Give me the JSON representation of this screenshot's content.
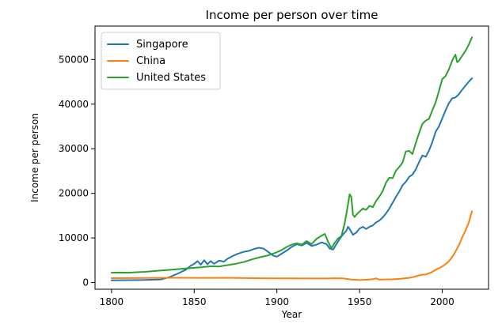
{
  "chart_data": {
    "type": "line",
    "title": "Income per person over time",
    "xlabel": "Year",
    "ylabel": "Income per person",
    "xlim": [
      1790,
      2028
    ],
    "ylim": [
      -1500,
      57500
    ],
    "xticks": [
      1800,
      1850,
      1900,
      1950,
      2000
    ],
    "yticks": [
      0,
      10000,
      20000,
      30000,
      40000,
      50000
    ],
    "grid": false,
    "legend_position": "top-left",
    "series": [
      {
        "name": "Singapore",
        "color": "#1f77b4",
        "points": [
          [
            1800,
            500
          ],
          [
            1810,
            540
          ],
          [
            1820,
            580
          ],
          [
            1830,
            700
          ],
          [
            1835,
            1200
          ],
          [
            1840,
            2000
          ],
          [
            1845,
            2900
          ],
          [
            1848,
            3800
          ],
          [
            1850,
            4200
          ],
          [
            1852,
            4800
          ],
          [
            1854,
            4000
          ],
          [
            1856,
            5000
          ],
          [
            1858,
            4100
          ],
          [
            1860,
            4800
          ],
          [
            1862,
            4200
          ],
          [
            1865,
            4900
          ],
          [
            1868,
            4700
          ],
          [
            1870,
            5300
          ],
          [
            1873,
            5900
          ],
          [
            1876,
            6400
          ],
          [
            1880,
            6900
          ],
          [
            1883,
            7100
          ],
          [
            1886,
            7500
          ],
          [
            1889,
            7800
          ],
          [
            1892,
            7600
          ],
          [
            1895,
            6800
          ],
          [
            1898,
            6000
          ],
          [
            1900,
            5800
          ],
          [
            1903,
            6500
          ],
          [
            1906,
            7200
          ],
          [
            1909,
            8000
          ],
          [
            1912,
            8600
          ],
          [
            1915,
            8300
          ],
          [
            1918,
            8900
          ],
          [
            1921,
            8200
          ],
          [
            1924,
            8500
          ],
          [
            1927,
            9000
          ],
          [
            1930,
            8600
          ],
          [
            1932,
            7600
          ],
          [
            1934,
            7400
          ],
          [
            1936,
            8600
          ],
          [
            1938,
            9800
          ],
          [
            1940,
            10800
          ],
          [
            1942,
            11600
          ],
          [
            1943,
            12500
          ],
          [
            1944,
            12000
          ],
          [
            1946,
            10700
          ],
          [
            1948,
            11200
          ],
          [
            1950,
            12100
          ],
          [
            1952,
            12500
          ],
          [
            1954,
            12000
          ],
          [
            1956,
            12500
          ],
          [
            1958,
            12800
          ],
          [
            1960,
            13500
          ],
          [
            1962,
            13900
          ],
          [
            1964,
            14600
          ],
          [
            1966,
            15500
          ],
          [
            1968,
            16600
          ],
          [
            1970,
            17900
          ],
          [
            1972,
            19200
          ],
          [
            1974,
            20400
          ],
          [
            1976,
            21800
          ],
          [
            1978,
            22600
          ],
          [
            1980,
            23700
          ],
          [
            1982,
            24200
          ],
          [
            1984,
            25400
          ],
          [
            1986,
            27000
          ],
          [
            1988,
            28500
          ],
          [
            1990,
            28200
          ],
          [
            1992,
            29600
          ],
          [
            1994,
            31500
          ],
          [
            1996,
            33800
          ],
          [
            1998,
            35000
          ],
          [
            2000,
            36800
          ],
          [
            2002,
            38600
          ],
          [
            2004,
            40200
          ],
          [
            2006,
            41300
          ],
          [
            2008,
            41500
          ],
          [
            2010,
            42200
          ],
          [
            2012,
            43200
          ],
          [
            2014,
            44100
          ],
          [
            2016,
            45000
          ],
          [
            2018,
            45800
          ]
        ]
      },
      {
        "name": "China",
        "color": "#ff7f0e",
        "points": [
          [
            1800,
            980
          ],
          [
            1810,
            1000
          ],
          [
            1820,
            1020
          ],
          [
            1830,
            1040
          ],
          [
            1840,
            1060
          ],
          [
            1850,
            1040
          ],
          [
            1860,
            1050
          ],
          [
            1870,
            1080
          ],
          [
            1880,
            1010
          ],
          [
            1890,
            960
          ],
          [
            1900,
            940
          ],
          [
            1910,
            930
          ],
          [
            1920,
            920
          ],
          [
            1930,
            920
          ],
          [
            1935,
            960
          ],
          [
            1940,
            940
          ],
          [
            1945,
            680
          ],
          [
            1950,
            560
          ],
          [
            1955,
            640
          ],
          [
            1958,
            760
          ],
          [
            1960,
            940
          ],
          [
            1962,
            640
          ],
          [
            1965,
            690
          ],
          [
            1970,
            740
          ],
          [
            1975,
            840
          ],
          [
            1978,
            980
          ],
          [
            1980,
            1050
          ],
          [
            1983,
            1280
          ],
          [
            1985,
            1520
          ],
          [
            1988,
            1750
          ],
          [
            1990,
            1800
          ],
          [
            1993,
            2200
          ],
          [
            1996,
            2850
          ],
          [
            2000,
            3600
          ],
          [
            2003,
            4400
          ],
          [
            2005,
            5200
          ],
          [
            2007,
            6300
          ],
          [
            2010,
            8300
          ],
          [
            2012,
            10100
          ],
          [
            2014,
            11600
          ],
          [
            2016,
            13400
          ],
          [
            2018,
            16000
          ]
        ]
      },
      {
        "name": "United States",
        "color": "#2ca02c",
        "points": [
          [
            1800,
            2200
          ],
          [
            1805,
            2250
          ],
          [
            1810,
            2200
          ],
          [
            1815,
            2300
          ],
          [
            1820,
            2400
          ],
          [
            1825,
            2550
          ],
          [
            1830,
            2700
          ],
          [
            1835,
            2850
          ],
          [
            1840,
            3000
          ],
          [
            1845,
            3150
          ],
          [
            1850,
            3300
          ],
          [
            1855,
            3450
          ],
          [
            1860,
            3650
          ],
          [
            1865,
            3600
          ],
          [
            1870,
            3900
          ],
          [
            1875,
            4200
          ],
          [
            1880,
            4600
          ],
          [
            1885,
            5200
          ],
          [
            1890,
            5700
          ],
          [
            1895,
            6100
          ],
          [
            1900,
            6800
          ],
          [
            1903,
            7300
          ],
          [
            1906,
            8000
          ],
          [
            1909,
            8500
          ],
          [
            1912,
            8800
          ],
          [
            1915,
            8500
          ],
          [
            1918,
            9300
          ],
          [
            1921,
            8600
          ],
          [
            1924,
            9800
          ],
          [
            1927,
            10500
          ],
          [
            1929,
            10900
          ],
          [
            1931,
            9100
          ],
          [
            1933,
            7700
          ],
          [
            1935,
            8900
          ],
          [
            1937,
            9900
          ],
          [
            1939,
            10400
          ],
          [
            1941,
            13300
          ],
          [
            1943,
            17500
          ],
          [
            1944,
            19800
          ],
          [
            1945,
            19200
          ],
          [
            1946,
            15200
          ],
          [
            1947,
            14700
          ],
          [
            1948,
            15200
          ],
          [
            1950,
            15900
          ],
          [
            1952,
            16600
          ],
          [
            1954,
            16300
          ],
          [
            1956,
            17200
          ],
          [
            1958,
            16900
          ],
          [
            1960,
            18300
          ],
          [
            1962,
            19300
          ],
          [
            1964,
            20500
          ],
          [
            1966,
            22400
          ],
          [
            1968,
            23500
          ],
          [
            1970,
            23400
          ],
          [
            1972,
            25100
          ],
          [
            1974,
            25900
          ],
          [
            1976,
            26900
          ],
          [
            1978,
            29400
          ],
          [
            1980,
            29500
          ],
          [
            1982,
            28800
          ],
          [
            1984,
            31300
          ],
          [
            1986,
            33500
          ],
          [
            1988,
            35600
          ],
          [
            1990,
            36300
          ],
          [
            1992,
            36700
          ],
          [
            1994,
            38600
          ],
          [
            1996,
            40400
          ],
          [
            1998,
            42900
          ],
          [
            2000,
            45600
          ],
          [
            2002,
            46300
          ],
          [
            2004,
            47800
          ],
          [
            2006,
            49700
          ],
          [
            2007,
            50500
          ],
          [
            2008,
            51100
          ],
          [
            2009,
            49400
          ],
          [
            2010,
            49700
          ],
          [
            2012,
            50800
          ],
          [
            2014,
            51900
          ],
          [
            2016,
            53300
          ],
          [
            2018,
            55000
          ]
        ]
      }
    ]
  }
}
